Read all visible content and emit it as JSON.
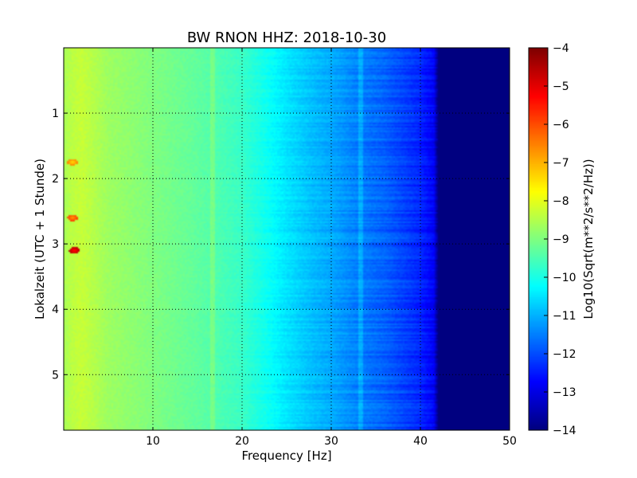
{
  "chart_data": {
    "type": "heatmap",
    "title": "BW RNON HHZ: 2018-10-30",
    "xlabel": "Frequency [Hz]",
    "ylabel": "Lokalzeit (UTC + 1 Stunde)",
    "colorbar_label": "Log10(Sqrt(m**2/s**2/Hz))",
    "xlim": [
      0,
      50
    ],
    "ylim": [
      0,
      5.85
    ],
    "y_inverted": true,
    "x_ticks": [
      10,
      20,
      30,
      40,
      50
    ],
    "y_ticks": [
      1,
      2,
      3,
      4,
      5
    ],
    "clim": [
      -14,
      -4
    ],
    "colorbar_ticks": [
      -4,
      -5,
      -6,
      -7,
      -8,
      -9,
      -10,
      -11,
      -12,
      -13,
      -14
    ],
    "colormap": "jet",
    "grid": true,
    "mean_spectrum": {
      "frequency_hz": [
        0,
        1,
        2,
        5,
        10,
        15,
        20,
        22,
        25,
        28,
        30,
        33,
        36,
        38,
        40,
        41.5,
        42,
        50
      ],
      "level": [
        -8.6,
        -8.4,
        -8.3,
        -8.7,
        -9.0,
        -9.3,
        -9.7,
        -10.0,
        -10.5,
        -10.9,
        -11.1,
        -11.5,
        -11.8,
        -12.1,
        -12.4,
        -12.8,
        -14,
        -14
      ]
    },
    "features": [
      {
        "type": "spot",
        "frequency_hz": 1.0,
        "time": 1.75,
        "level": -7.5
      },
      {
        "type": "spot",
        "frequency_hz": 1.0,
        "time": 2.6,
        "level": -6.8
      },
      {
        "type": "spot",
        "frequency_hz": 1.2,
        "time": 3.1,
        "level": -5.5
      },
      {
        "type": "spectral-line",
        "frequency_hz": 16.7,
        "delta": 0.35
      },
      {
        "type": "spectral-line",
        "frequency_hz": 33.3,
        "delta": 0.45
      }
    ]
  }
}
